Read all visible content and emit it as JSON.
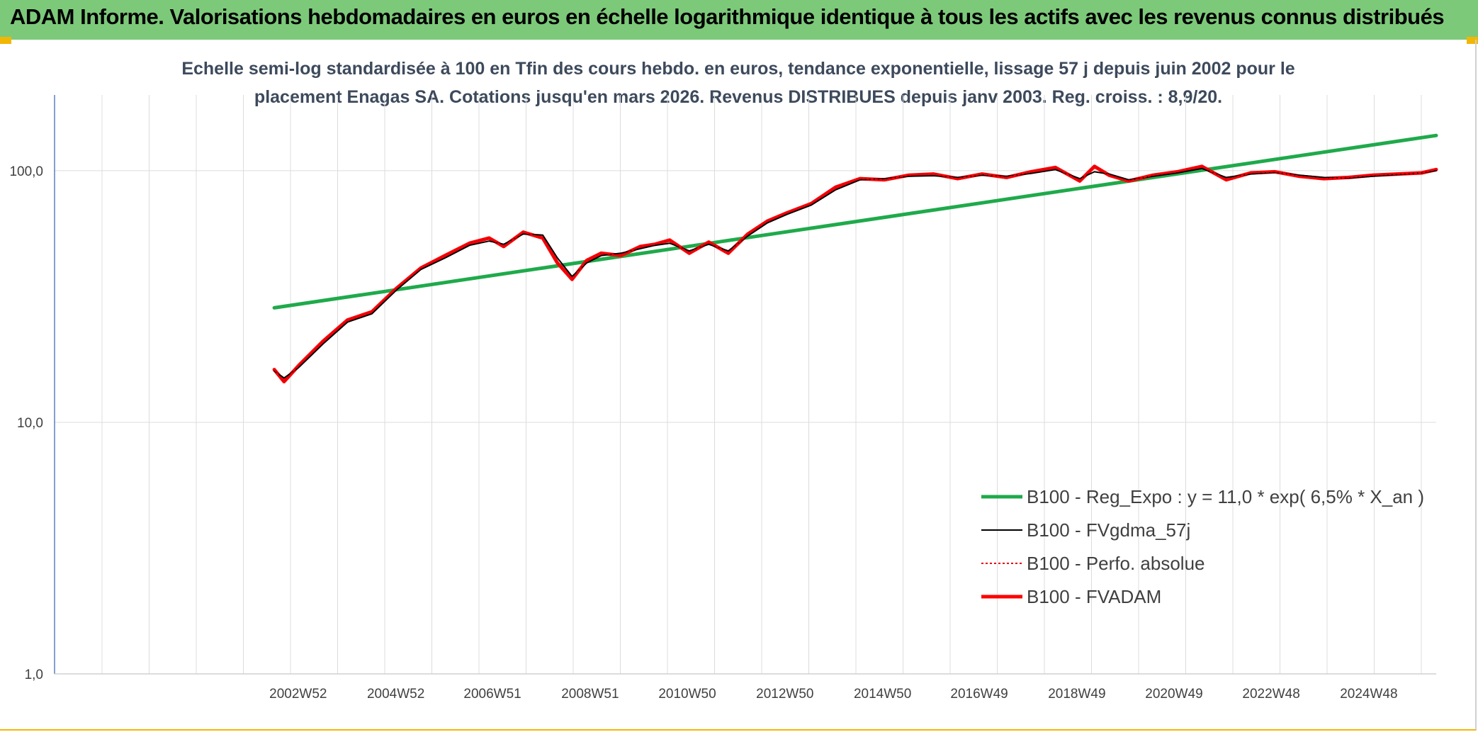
{
  "banner": {
    "title": "ADAM Informe. Valorisations hebdomadaires en euros en échelle logarithmique identique à tous les actifs avec les revenus connus distribués"
  },
  "chart_data": {
    "type": "line",
    "subtitle_lines": [
      "Echelle semi-log standardisée à 100 en Tfin des cours hebdo. en euros, tendance exponentielle, lissage 57 j depuis juin 2002 pour le",
      "placement Enagas SA. Cotations jusqu'en mars 2026. Revenus DISTRIBUES depuis janv 2003. Reg. croiss. : 8,9/20."
    ],
    "y_scale": "log",
    "ylim": [
      1,
      200
    ],
    "y_ticks": [
      1,
      10,
      100
    ],
    "y_tick_labels": [
      "1,0",
      "10,0",
      "100,0"
    ],
    "xlim": [
      1998.0,
      2026.3
    ],
    "x_ticks": [
      2002.99,
      2004.99,
      2006.97,
      2008.97,
      2010.96,
      2012.96,
      2014.96,
      2016.94,
      2018.94,
      2020.93,
      2022.92,
      2024.92
    ],
    "x_tick_labels": [
      "2002W52",
      "2004W52",
      "2006W51",
      "2008W51",
      "2010W50",
      "2012W50",
      "2014W50",
      "2016W49",
      "2018W49",
      "2020W49",
      "2022W48",
      "2024W48"
    ],
    "grid": true,
    "legend_position": "bottom-right",
    "series": [
      {
        "name": "B100 - Reg_Expo : y = 11,0 * exp( 6,5% *  X_an )",
        "color": "#1faa4b",
        "style": "solid-thick",
        "x": [
          2002.5,
          2026.3
        ],
        "y": [
          28.5,
          138.0
        ]
      },
      {
        "name": "B100 - FVgdma_57j",
        "color": "#000000",
        "style": "solid",
        "x": [
          2002.5,
          2002.7,
          2003.0,
          2003.5,
          2004.0,
          2004.5,
          2005.0,
          2005.5,
          2006.0,
          2006.5,
          2006.9,
          2007.2,
          2007.6,
          2008.0,
          2008.3,
          2008.6,
          2008.9,
          2009.2,
          2009.6,
          2010.0,
          2010.3,
          2010.6,
          2011.0,
          2011.4,
          2011.8,
          2012.2,
          2012.6,
          2013.0,
          2013.5,
          2014.0,
          2014.5,
          2015.0,
          2015.5,
          2016.0,
          2016.5,
          2017.0,
          2017.5,
          2018.0,
          2018.5,
          2019.0,
          2019.3,
          2019.6,
          2020.0,
          2020.5,
          2021.0,
          2021.5,
          2022.0,
          2022.5,
          2023.0,
          2023.5,
          2024.0,
          2024.5,
          2025.0,
          2025.5,
          2026.0,
          2026.3
        ],
        "y": [
          16.0,
          15.0,
          16.5,
          20.5,
          25.0,
          27.0,
          33.5,
          40.5,
          45.0,
          50.5,
          52.5,
          51.0,
          56.0,
          55.5,
          45.0,
          38.0,
          43.0,
          46.0,
          47.0,
          49.0,
          50.5,
          51.5,
          48.0,
          51.0,
          48.0,
          55.0,
          62.0,
          67.0,
          73.0,
          84.0,
          92.0,
          93.0,
          95.0,
          95.5,
          94.0,
          96.0,
          95.0,
          97.5,
          101.0,
          93.0,
          99.0,
          97.0,
          92.0,
          95.0,
          98.0,
          102.0,
          94.0,
          97.0,
          98.5,
          96.0,
          94.0,
          93.5,
          95.0,
          96.5,
          98.0,
          100.0
        ]
      },
      {
        "name": "B100 - Perfo. absolue",
        "color": "#e3000f",
        "style": "dotted",
        "x": [
          2002.5,
          2002.7,
          2003.0,
          2003.5,
          2004.0,
          2004.5,
          2005.0,
          2005.5,
          2006.0,
          2006.5,
          2006.9,
          2007.2,
          2007.6,
          2008.0,
          2008.3,
          2008.6,
          2008.9,
          2009.2,
          2009.6,
          2010.0,
          2010.3,
          2010.6,
          2011.0,
          2011.4,
          2011.8,
          2012.2,
          2012.6,
          2013.0,
          2013.5,
          2014.0,
          2014.5,
          2015.0,
          2015.5,
          2016.0,
          2016.5,
          2017.0,
          2017.5,
          2018.0,
          2018.5,
          2019.0,
          2019.3,
          2019.6,
          2020.0,
          2020.5,
          2021.0,
          2021.5,
          2022.0,
          2022.5,
          2023.0,
          2023.5,
          2024.0,
          2024.5,
          2025.0,
          2025.5,
          2026.0,
          2026.3
        ],
        "y": [
          16.2,
          14.5,
          16.8,
          21.0,
          25.5,
          27.5,
          34.0,
          41.0,
          46.0,
          51.5,
          54.0,
          50.0,
          57.0,
          54.0,
          43.0,
          37.0,
          44.0,
          47.0,
          46.0,
          50.0,
          51.0,
          53.0,
          47.0,
          52.0,
          47.0,
          56.0,
          63.0,
          68.0,
          74.0,
          86.0,
          93.0,
          92.0,
          96.0,
          97.0,
          93.0,
          97.0,
          94.0,
          99.0,
          103.0,
          91.0,
          104.0,
          96.0,
          91.0,
          96.0,
          99.0,
          104.0,
          92.0,
          98.0,
          99.0,
          95.0,
          93.0,
          94.0,
          96.0,
          97.0,
          98.0,
          101.0
        ]
      },
      {
        "name": "B100 - FVADAM",
        "color": "#ff0000",
        "style": "solid-thick",
        "x": [
          2002.5,
          2002.7,
          2003.0,
          2003.5,
          2004.0,
          2004.5,
          2005.0,
          2005.5,
          2006.0,
          2006.5,
          2006.9,
          2007.2,
          2007.6,
          2008.0,
          2008.3,
          2008.6,
          2008.9,
          2009.2,
          2009.6,
          2010.0,
          2010.3,
          2010.6,
          2011.0,
          2011.4,
          2011.8,
          2012.2,
          2012.6,
          2013.0,
          2013.5,
          2014.0,
          2014.5,
          2015.0,
          2015.5,
          2016.0,
          2016.5,
          2017.0,
          2017.5,
          2018.0,
          2018.5,
          2019.0,
          2019.3,
          2019.6,
          2020.0,
          2020.5,
          2021.0,
          2021.5,
          2022.0,
          2022.5,
          2023.0,
          2023.5,
          2024.0,
          2024.5,
          2025.0,
          2025.5,
          2026.0,
          2026.3
        ],
        "y": [
          16.2,
          14.5,
          16.8,
          21.0,
          25.5,
          27.5,
          34.0,
          41.0,
          46.0,
          51.5,
          54.0,
          50.0,
          57.0,
          54.0,
          43.0,
          37.0,
          44.0,
          47.0,
          46.0,
          50.0,
          51.0,
          53.0,
          47.0,
          52.0,
          47.0,
          56.0,
          63.0,
          68.0,
          74.0,
          86.0,
          93.0,
          92.0,
          96.0,
          97.0,
          93.0,
          97.0,
          94.0,
          99.0,
          103.0,
          91.0,
          104.0,
          96.0,
          91.0,
          96.0,
          99.0,
          104.0,
          92.0,
          98.0,
          99.0,
          95.0,
          93.0,
          94.0,
          96.0,
          97.0,
          98.0,
          101.0
        ]
      }
    ]
  }
}
